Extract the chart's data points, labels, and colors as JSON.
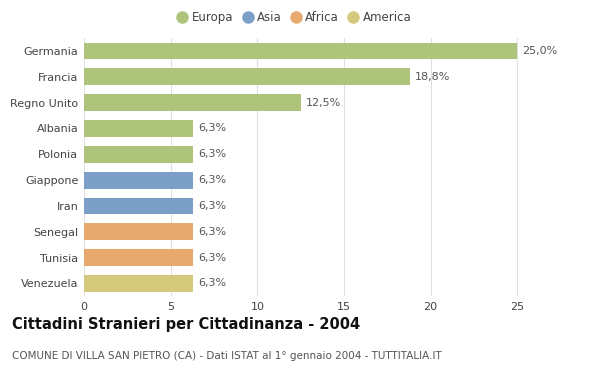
{
  "categories": [
    "Venezuela",
    "Tunisia",
    "Senegal",
    "Iran",
    "Giappone",
    "Polonia",
    "Albania",
    "Regno Unito",
    "Francia",
    "Germania"
  ],
  "values": [
    6.3,
    6.3,
    6.3,
    6.3,
    6.3,
    6.3,
    6.3,
    12.5,
    18.8,
    25.0
  ],
  "colors": [
    "#d4c97a",
    "#e8a96e",
    "#e8a96e",
    "#7b9fc7",
    "#7b9fc7",
    "#adc47a",
    "#adc47a",
    "#adc47a",
    "#adc47a",
    "#adc47a"
  ],
  "labels": [
    "6,3%",
    "6,3%",
    "6,3%",
    "6,3%",
    "6,3%",
    "6,3%",
    "6,3%",
    "12,5%",
    "18,8%",
    "25,0%"
  ],
  "legend": [
    {
      "label": "Europa",
      "color": "#adc47a"
    },
    {
      "label": "Asia",
      "color": "#7b9fc7"
    },
    {
      "label": "Africa",
      "color": "#e8a96e"
    },
    {
      "label": "America",
      "color": "#d4c97a"
    }
  ],
  "title": "Cittadini Stranieri per Cittadinanza - 2004",
  "subtitle": "COMUNE DI VILLA SAN PIETRO (CA) - Dati ISTAT al 1° gennaio 2004 - TUTTITALIA.IT",
  "xlim": [
    0,
    27
  ],
  "xticks": [
    0,
    5,
    10,
    15,
    20,
    25
  ],
  "background_color": "#ffffff",
  "grid_color": "#e0e0e0",
  "title_fontsize": 10.5,
  "subtitle_fontsize": 7.5,
  "label_fontsize": 8,
  "tick_fontsize": 8,
  "legend_fontsize": 8.5
}
